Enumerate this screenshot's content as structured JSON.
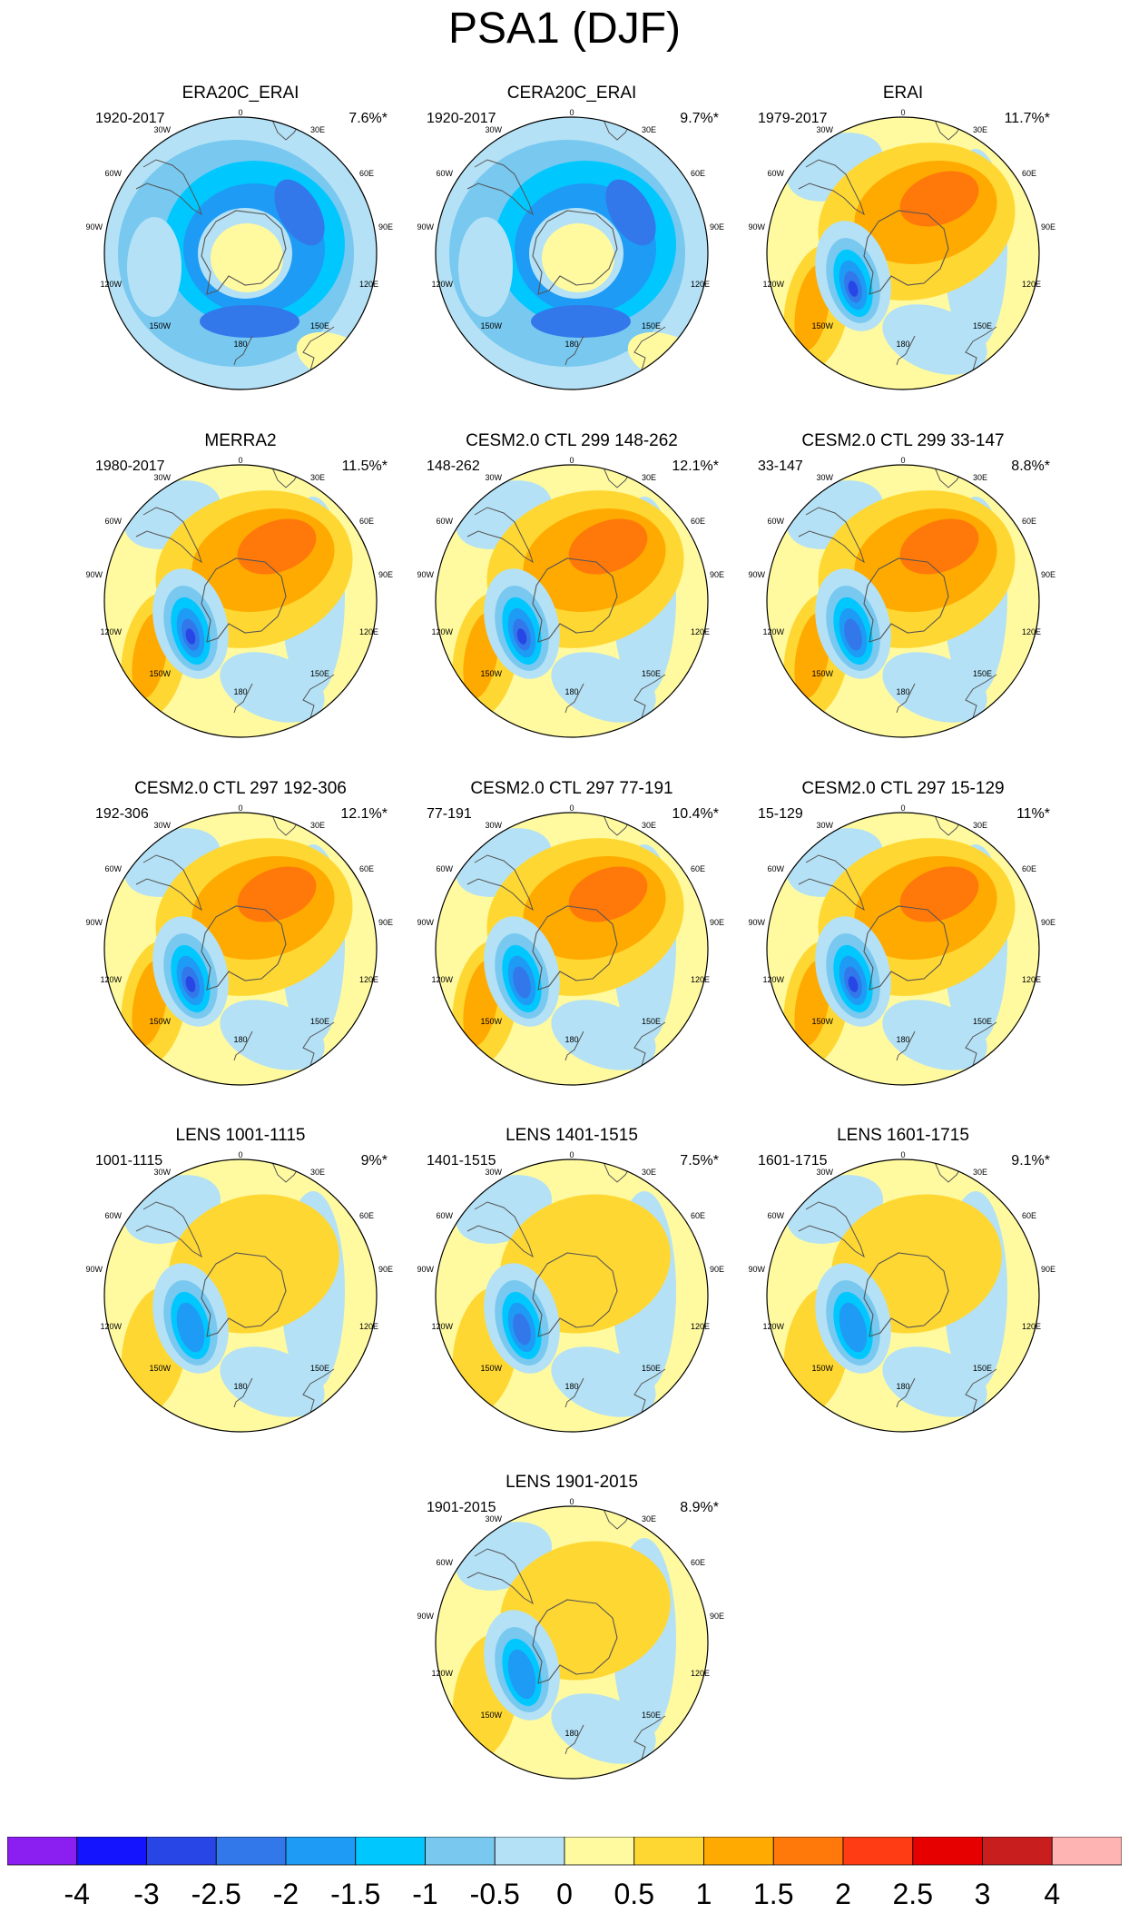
{
  "title": "PSA1 (DJF)",
  "legend": {
    "colors": [
      "#8b1ef0",
      "#1414ff",
      "#2846e6",
      "#3278eb",
      "#1e9bf5",
      "#00c8ff",
      "#78c8f0",
      "#b4e1f5",
      "#fffaa0",
      "#ffd732",
      "#ffaa00",
      "#ff780a",
      "#ff3c14",
      "#e60000",
      "#c81e1e",
      "#ffb4b4"
    ],
    "labels": [
      "-4",
      "-3",
      "-2.5",
      "-2",
      "-1.5",
      "-1",
      "-0.5",
      "0",
      "0.5",
      "1",
      "1.5",
      "2",
      "2.5",
      "3",
      "4"
    ]
  },
  "longitude_labels": {
    "n": "0",
    "ne": "30E",
    "ene": "60E",
    "e": "90E",
    "ese": "120E",
    "se": "150E",
    "s": "180",
    "sw": "150W",
    "wsw": "120W",
    "w": "90W",
    "wnw": "60W",
    "nw": "30W"
  },
  "panels": [
    {
      "title": "ERA20C_ERAI",
      "years": "1920-2017",
      "variance": "7.6%*",
      "pattern": "negative_ring",
      "blob": null
    },
    {
      "title": "CERA20C_ERAI",
      "years": "1920-2017",
      "variance": "9.7%*",
      "pattern": "negative_ring",
      "blob": null
    },
    {
      "title": "ERAI",
      "years": "1979-2017",
      "variance": "11.7%*",
      "pattern": "psa",
      "blob": "strong"
    },
    {
      "title": "MERRA2",
      "years": "1980-2017",
      "variance": "11.5%*",
      "pattern": "psa",
      "blob": "strong"
    },
    {
      "title": "CESM2.0 CTL 299 148-262",
      "years": "148-262",
      "variance": "12.1%*",
      "pattern": "psa",
      "blob": "strong"
    },
    {
      "title": "CESM2.0 CTL 299 33-147",
      "years": "33-147",
      "variance": "8.8%*",
      "pattern": "psa",
      "blob": "moderate"
    },
    {
      "title": "CESM2.0 CTL 297 192-306",
      "years": "192-306",
      "variance": "12.1%*",
      "pattern": "psa",
      "blob": "strong"
    },
    {
      "title": "CESM2.0 CTL 297 77-191",
      "years": "77-191",
      "variance": "10.4%*",
      "pattern": "psa",
      "blob": "moderate"
    },
    {
      "title": "CESM2.0 CTL 297 15-129",
      "years": "15-129",
      "variance": "11%*",
      "pattern": "psa",
      "blob": "strong"
    },
    {
      "title": "LENS 1001-1115",
      "years": "1001-1115",
      "variance": "9%*",
      "pattern": "psa_weak",
      "blob": "weak"
    },
    {
      "title": "LENS 1401-1515",
      "years": "1401-1515",
      "variance": "7.5%*",
      "pattern": "psa_weak",
      "blob": "moderate"
    },
    {
      "title": "LENS 1601-1715",
      "years": "1601-1715",
      "variance": "9.1%*",
      "pattern": "psa_weak",
      "blob": "weak"
    },
    {
      "title": "LENS 1901-2015",
      "years": "1901-2015",
      "variance": "8.9%*",
      "pattern": "psa_weak",
      "blob": "weak"
    }
  ]
}
